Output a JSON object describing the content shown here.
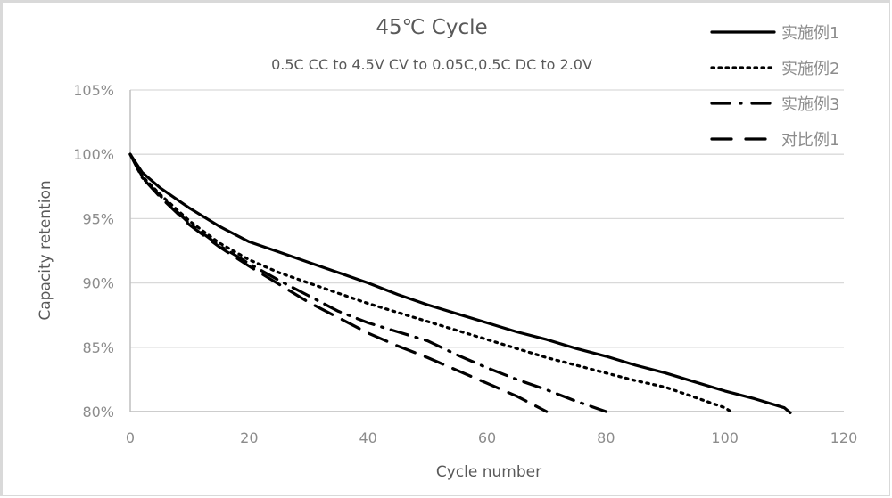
{
  "chart_data": {
    "type": "line",
    "title": "45℃ Cycle",
    "subtitle": "0.5C CC to 4.5V CV to 0.05C,0.5C DC to 2.0V",
    "xlabel": "Cycle number",
    "ylabel": "Capacity retention",
    "xlim": [
      0,
      120
    ],
    "ylim": [
      80,
      105
    ],
    "x_ticks": [
      0,
      20,
      40,
      60,
      80,
      100,
      120
    ],
    "x_tick_labels": [
      "0",
      "20",
      "40",
      "60",
      "80",
      "100",
      "120"
    ],
    "y_ticks": [
      80,
      85,
      90,
      95,
      100,
      105
    ],
    "y_tick_labels": [
      "80%",
      "85%",
      "90%",
      "95%",
      "100%",
      "105%"
    ],
    "grid": "horizontal",
    "legend_position": "top-right",
    "series": [
      {
        "name": "实施例1",
        "style": "solid",
        "x": [
          0,
          2,
          5,
          10,
          15,
          20,
          25,
          30,
          35,
          40,
          45,
          50,
          55,
          60,
          65,
          70,
          75,
          80,
          85,
          90,
          95,
          100,
          105,
          110,
          111
        ],
        "y": [
          100,
          98.6,
          97.4,
          95.8,
          94.4,
          93.2,
          92.4,
          91.6,
          90.8,
          90.0,
          89.1,
          88.3,
          87.6,
          86.9,
          86.2,
          85.6,
          84.9,
          84.3,
          83.6,
          83.0,
          82.3,
          81.6,
          81.0,
          80.3,
          79.9
        ]
      },
      {
        "name": "实施例2",
        "style": "dotted",
        "x": [
          0,
          2,
          5,
          10,
          15,
          20,
          25,
          30,
          35,
          40,
          45,
          50,
          55,
          60,
          65,
          70,
          75,
          80,
          85,
          90,
          95,
          100,
          101
        ],
        "y": [
          100,
          98.3,
          96.9,
          94.8,
          93.1,
          91.8,
          90.8,
          90.0,
          89.2,
          88.4,
          87.7,
          87.0,
          86.3,
          85.6,
          84.9,
          84.2,
          83.6,
          83.0,
          82.4,
          81.9,
          81.1,
          80.3,
          80.0
        ]
      },
      {
        "name": "实施例3",
        "style": "dash-dot",
        "x": [
          0,
          2,
          5,
          10,
          15,
          20,
          25,
          30,
          35,
          40,
          45,
          50,
          55,
          60,
          65,
          70,
          75,
          80
        ],
        "y": [
          100,
          98.2,
          96.8,
          94.6,
          92.9,
          91.5,
          90.2,
          89.0,
          87.8,
          86.9,
          86.2,
          85.5,
          84.4,
          83.4,
          82.5,
          81.7,
          80.8,
          80.0
        ]
      },
      {
        "name": "对比例1",
        "style": "dashed",
        "x": [
          0,
          2,
          5,
          10,
          15,
          20,
          25,
          30,
          35,
          40,
          45,
          50,
          55,
          60,
          65,
          70
        ],
        "y": [
          100,
          98.2,
          96.7,
          94.5,
          92.8,
          91.3,
          89.9,
          88.5,
          87.3,
          86.1,
          85.1,
          84.2,
          83.2,
          82.2,
          81.2,
          80.0
        ]
      }
    ]
  }
}
